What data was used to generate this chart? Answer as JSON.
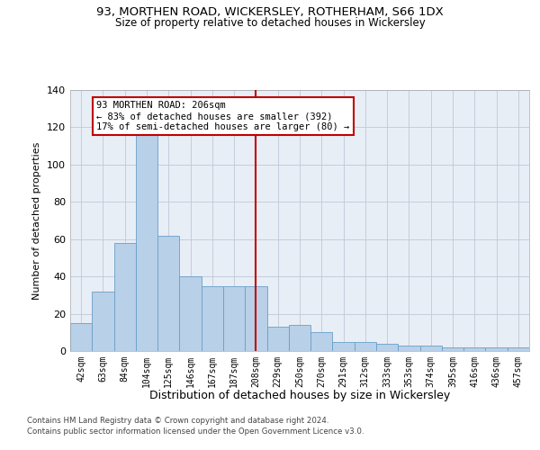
{
  "title1": "93, MORTHEN ROAD, WICKERSLEY, ROTHERHAM, S66 1DX",
  "title2": "Size of property relative to detached houses in Wickersley",
  "xlabel": "Distribution of detached houses by size in Wickersley",
  "ylabel": "Number of detached properties",
  "categories": [
    "42sqm",
    "63sqm",
    "84sqm",
    "104sqm",
    "125sqm",
    "146sqm",
    "167sqm",
    "187sqm",
    "208sqm",
    "229sqm",
    "250sqm",
    "270sqm",
    "291sqm",
    "312sqm",
    "333sqm",
    "353sqm",
    "374sqm",
    "395sqm",
    "416sqm",
    "436sqm",
    "457sqm"
  ],
  "values": [
    15,
    32,
    58,
    116,
    62,
    40,
    35,
    35,
    35,
    13,
    14,
    10,
    5,
    5,
    4,
    3,
    3,
    2,
    2,
    2,
    2
  ],
  "bar_color": "#b8d0e8",
  "bar_edge_color": "#6a9fc8",
  "vline_x": 8,
  "vline_color": "#c00000",
  "annotation_text": "93 MORTHEN ROAD: 206sqm\n← 83% of detached houses are smaller (392)\n17% of semi-detached houses are larger (80) →",
  "annotation_box_color": "#ffffff",
  "annotation_box_edge": "#c00000",
  "ylim": [
    0,
    140
  ],
  "yticks": [
    0,
    20,
    40,
    60,
    80,
    100,
    120,
    140
  ],
  "bg_color": "#e8eef6",
  "footer1": "Contains HM Land Registry data © Crown copyright and database right 2024.",
  "footer2": "Contains public sector information licensed under the Open Government Licence v3.0."
}
